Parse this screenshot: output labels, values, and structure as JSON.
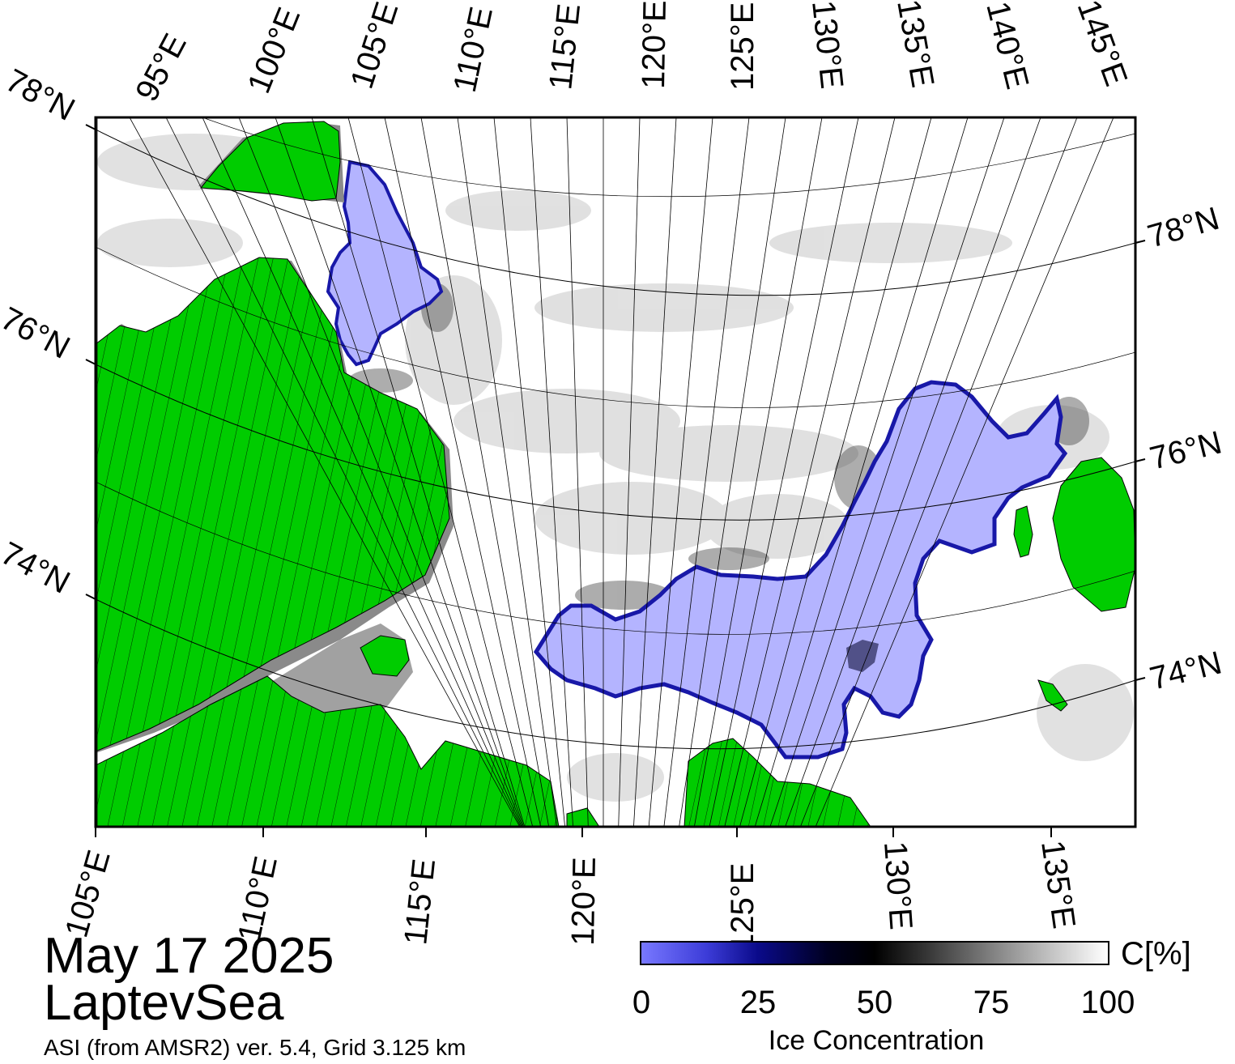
{
  "map": {
    "date": "May 17 2025",
    "region": "LaptevSea",
    "source": "ASI (from AMSR2) ver. 5.4,  Grid 3.125 km",
    "top_lon_labels": [
      "95°E",
      "100°E",
      "105°E",
      "110°E",
      "115°E",
      "120°E",
      "125°E",
      "130°E",
      "135°E",
      "140°E",
      "145°E"
    ],
    "bottom_lon_labels": [
      "105°E",
      "110°E",
      "115°E",
      "120°E",
      "125°E",
      "130°E",
      "135°E"
    ],
    "left_lat_labels": [
      "78°N",
      "76°N",
      "74°N"
    ],
    "right_lat_labels": [
      "78°N",
      "76°N",
      "74°N"
    ],
    "colors": {
      "land": "#00cc00",
      "open_water": "#b4b4ff",
      "ice": "#ffffff",
      "ice_texture": "#d0d0d0",
      "coast_gray": "#8a8a8a",
      "edge_blue": "#2020b0"
    }
  },
  "colorbar": {
    "ticks": [
      "0",
      "25",
      "50",
      "75",
      "100"
    ],
    "tick_values": [
      0,
      25,
      50,
      75,
      100
    ],
    "unit": "C[%]",
    "label": "Ice Concentration"
  }
}
